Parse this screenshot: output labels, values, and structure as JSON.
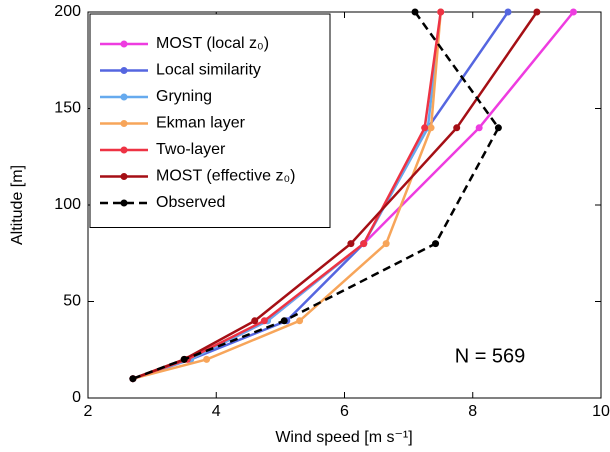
{
  "chart_data": {
    "type": "line",
    "x_label": "Wind speed [m s⁻¹]",
    "y_label": "Altitude [m]",
    "annotation": "N = 569",
    "xlim": [
      2,
      10
    ],
    "xticks": [
      2,
      4,
      6,
      8,
      10
    ],
    "ylim": [
      0,
      200
    ],
    "yticks": [
      0,
      50,
      100,
      150,
      200
    ],
    "legend": "upper left",
    "series": [
      {
        "name": "MOST (local z₀)",
        "color": "#ee3ce0",
        "x": [
          2.7,
          3.6,
          4.8,
          6.3,
          8.1,
          9.57
        ],
        "values": [
          10,
          20,
          40,
          80,
          140,
          200
        ]
      },
      {
        "name": "Local similarity",
        "color": "#5566e0",
        "x": [
          2.7,
          3.6,
          5.1,
          6.3,
          7.3,
          8.55
        ],
        "values": [
          10,
          20,
          40,
          80,
          140,
          200
        ]
      },
      {
        "name": "Gryning",
        "color": "#66aaee",
        "x": [
          2.7,
          3.6,
          4.8,
          6.3,
          7.3,
          7.5
        ],
        "values": [
          10,
          20,
          40,
          80,
          140,
          200
        ]
      },
      {
        "name": "Ekman layer",
        "color": "#f7a55a",
        "x": [
          2.7,
          3.85,
          5.3,
          6.65,
          7.35,
          7.5
        ],
        "values": [
          10,
          20,
          40,
          80,
          140,
          200
        ]
      },
      {
        "name": "Two-layer",
        "color": "#ee3344",
        "x": [
          2.7,
          3.55,
          4.75,
          6.3,
          7.25,
          7.5
        ],
        "values": [
          10,
          20,
          40,
          80,
          140,
          200
        ]
      },
      {
        "name": "MOST (effective z₀)",
        "color": "#a50f15",
        "x": [
          2.7,
          3.5,
          4.6,
          6.1,
          7.75,
          9.0
        ],
        "values": [
          10,
          20,
          40,
          80,
          140,
          200
        ]
      },
      {
        "name": "Observed",
        "color": "#000000",
        "line_style": "dashed",
        "x": [
          2.7,
          3.5,
          5.06,
          7.42,
          8.4,
          7.1
        ],
        "values": [
          10,
          20,
          40,
          80,
          140,
          200
        ]
      }
    ]
  }
}
